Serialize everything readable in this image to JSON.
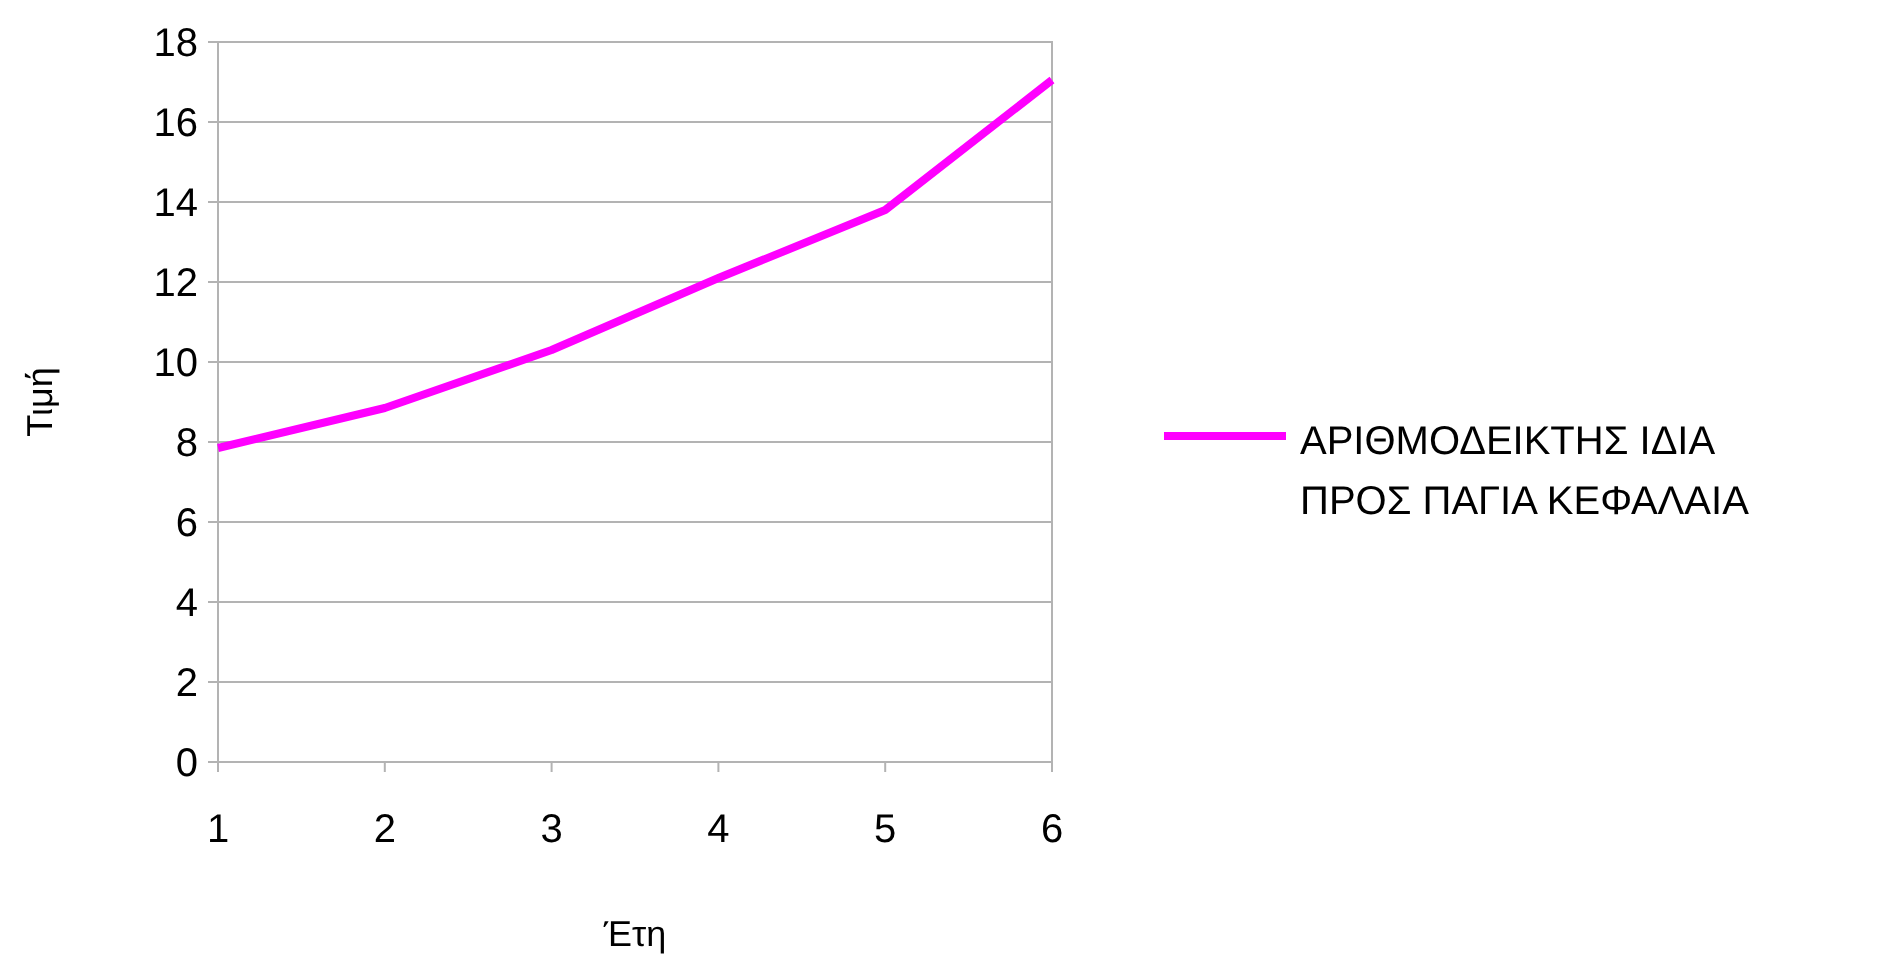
{
  "chart_data": {
    "type": "line",
    "xlabel": "Έτη",
    "ylabel": "Τιμή",
    "x": [
      1,
      2,
      3,
      4,
      5,
      6
    ],
    "xlim": [
      1,
      6
    ],
    "xticks": [
      1,
      2,
      3,
      4,
      5,
      6
    ],
    "ylim": [
      0,
      18
    ],
    "yticks": [
      0,
      2,
      4,
      6,
      8,
      10,
      12,
      14,
      16,
      18
    ],
    "grid": "y",
    "legend": "right",
    "series": [
      {
        "name": "ΑΡΙΘΜΟΔΕΙΚΤΗΣ ΙΔΙΑ ΠΡΟΣ ΠΑΓΙΑ ΚΕΦΑΛΑΙΑ",
        "color": "#ff00ff",
        "values": [
          7.85,
          8.85,
          10.3,
          12.1,
          13.8,
          17.05
        ]
      }
    ]
  }
}
